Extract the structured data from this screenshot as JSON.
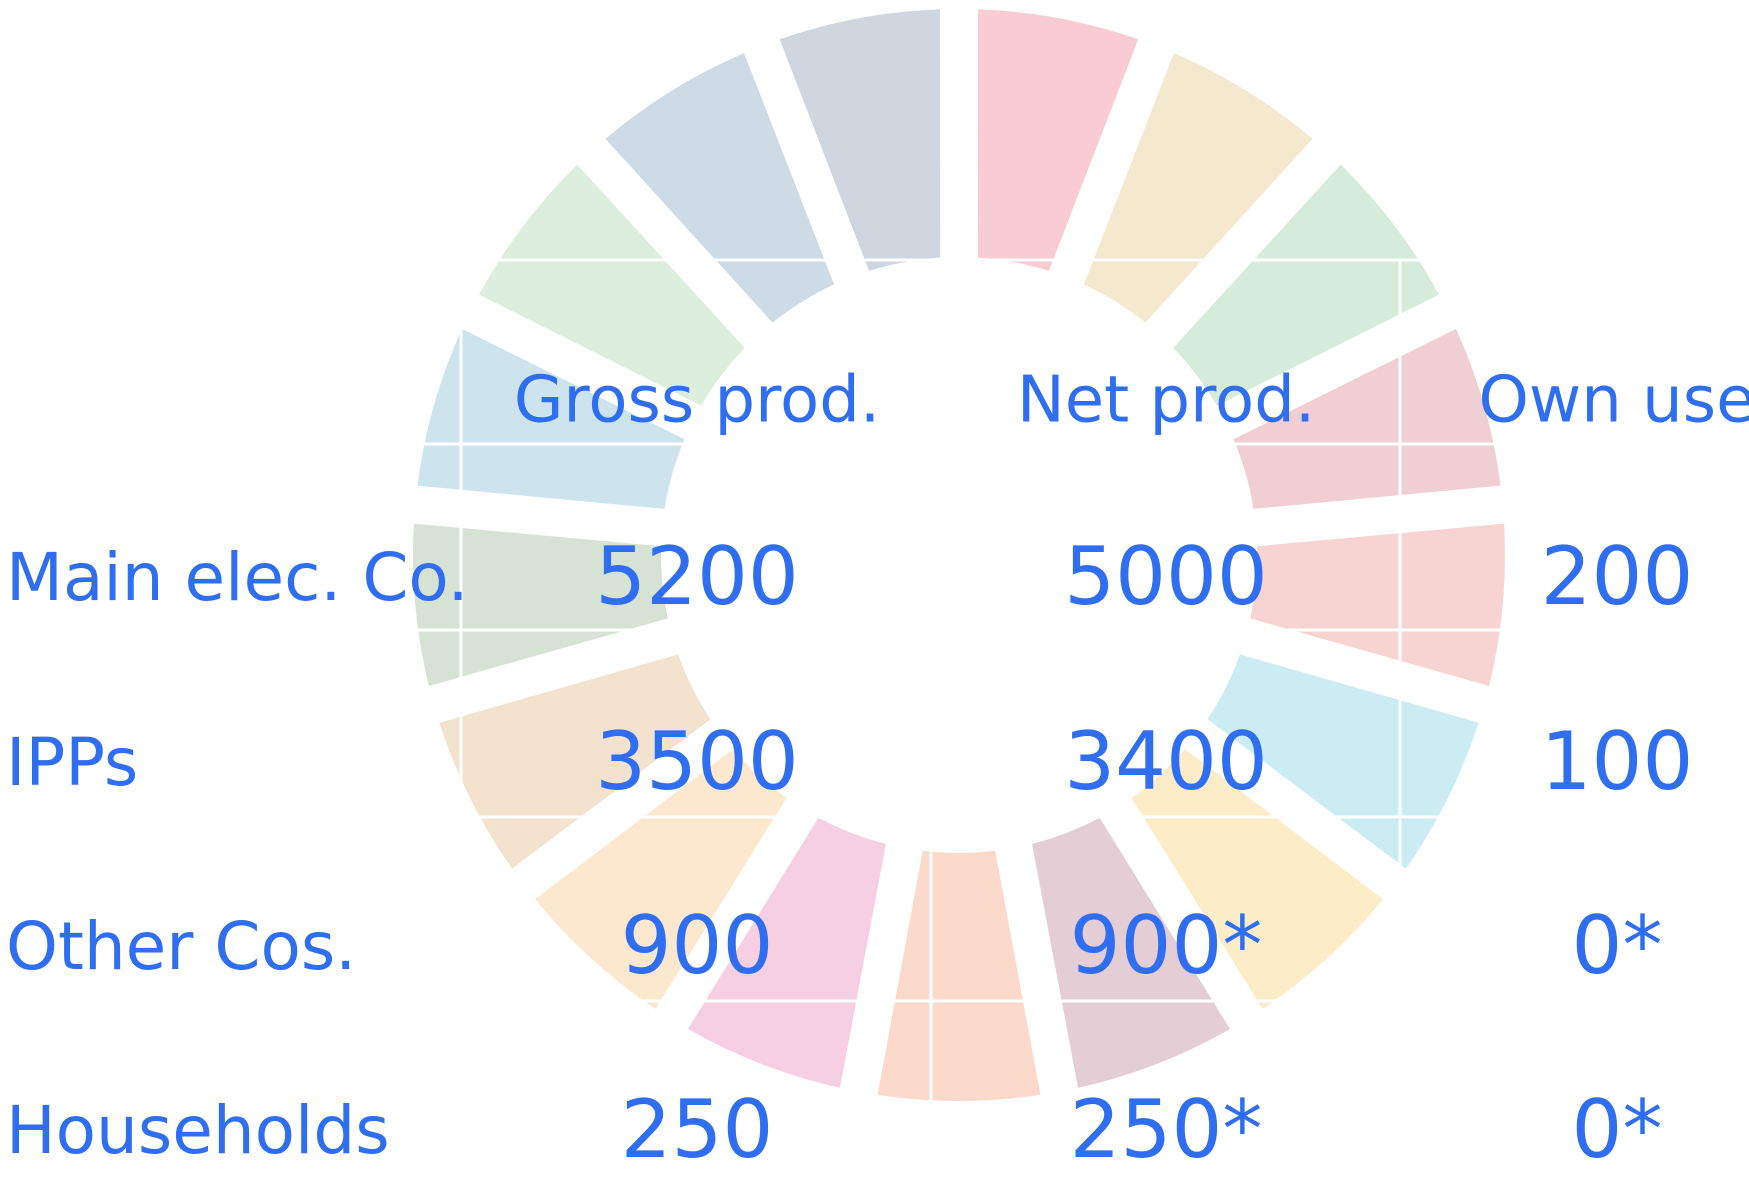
{
  "table": {
    "header": [
      "Gross prod.",
      "Net prod.",
      "Own use"
    ],
    "rows": [
      [
        "Main elec. Co.",
        "5200",
        "5000",
        "200"
      ],
      [
        "IPPs",
        "3500",
        "3400",
        "100"
      ],
      [
        "Other Cos.",
        "900",
        "900*",
        "0*"
      ],
      [
        "Households",
        "250",
        "250*",
        "0*"
      ]
    ]
  }
}
